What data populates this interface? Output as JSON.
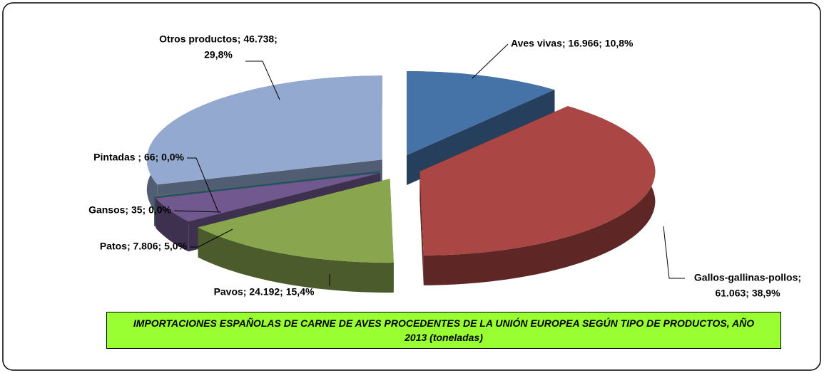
{
  "chart_data": {
    "type": "pie",
    "title": "IMPORTACIONES ESPAÑOLAS DE CARNE DE AVES PROCEDENTES DE LA UNIÓN EUROPEA SEGÚN TIPO DE PRODUCTOS, AÑO 2013 (toneladas)",
    "values": [
      16966,
      61063,
      24192,
      7806,
      35,
      66,
      46738
    ],
    "value_labels": [
      [
        "Aves vivas; 16.966; 10,8%"
      ],
      [
        "Gallos-gallinas-pollos;",
        "61.063; 38,9%"
      ],
      [
        "Pavos; 24.192; 15,4%"
      ],
      [
        "Patos; 7.806; 5,0%"
      ],
      [
        "Gansos; 35; 0,0%"
      ],
      [
        "Pintadas ; 66; 0,0%"
      ],
      [
        "Otros productos; 46.738;",
        "29,8%"
      ]
    ],
    "colors": [
      "#4572a7",
      "#aa4643",
      "#89a54e",
      "#71588f",
      "#4198af",
      "#db843d",
      "#93a9cf"
    ]
  }
}
